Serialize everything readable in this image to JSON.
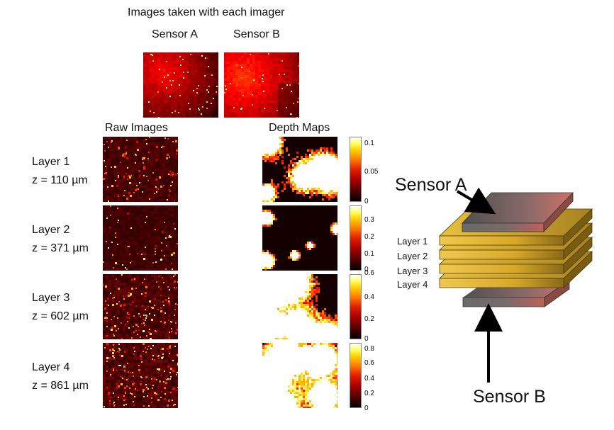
{
  "header": {
    "title": "Images taken with each imager",
    "sensor_a": "Sensor A",
    "sensor_b": "Sensor B"
  },
  "columns": {
    "raw": "Raw Images",
    "depth": "Depth Maps"
  },
  "layers": [
    {
      "name": "Layer 1",
      "z": "z = 110 µm",
      "ticks": [
        "0.1",
        "0.05",
        "0"
      ],
      "density": 0.3
    },
    {
      "name": "Layer 2",
      "z": "z = 371 µm",
      "ticks": [
        "0.3",
        "0.2",
        "0.1",
        "0"
      ],
      "density": 0.08
    },
    {
      "name": "Layer 3",
      "z": "z = 602 µm",
      "ticks": [
        "0.6",
        "0.4",
        "0.2",
        "0"
      ],
      "density": 0.45
    },
    {
      "name": "Layer 4",
      "z": "z = 861 µm",
      "ticks": [
        "0.8",
        "0.6",
        "0.4",
        "0.2",
        "0"
      ],
      "density": 0.55
    }
  ],
  "diagram": {
    "sensor_a": "Sensor A",
    "sensor_b": "Sensor B",
    "layers": [
      "Layer 1",
      "Layer 2",
      "Layer 3",
      "Layer 4"
    ]
  },
  "colors": {
    "layer_gold": "#e8b830",
    "layer_dark": "#7a5c10",
    "sensor_gray": "#6a6a6a",
    "sensor_red": "#c06058"
  }
}
